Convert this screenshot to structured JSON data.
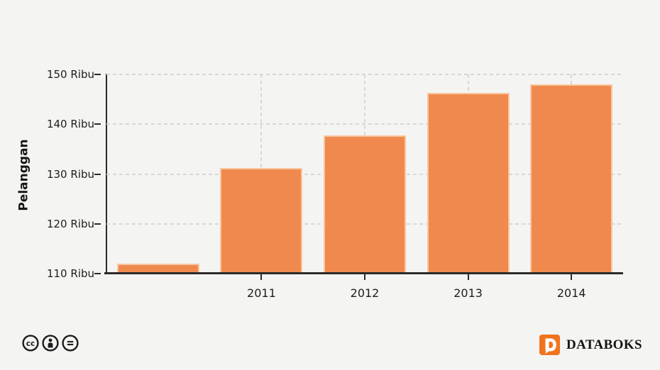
{
  "chart_data": {
    "type": "bar",
    "categories": [
      "",
      "2011",
      "2012",
      "2013",
      "2014"
    ],
    "values": [
      112,
      131.2,
      137.8,
      146.3,
      148
    ],
    "title": "",
    "xlabel": "",
    "ylabel": "Pelanggan",
    "unit": "Ribu",
    "ylim": [
      110,
      150
    ],
    "yticks": [
      110,
      120,
      130,
      140,
      150
    ],
    "ytick_labels": [
      "110 Ribu",
      "120 Ribu",
      "130 Ribu",
      "140 Ribu",
      "150 Ribu"
    ],
    "grid": "dashed horizontal and vertical gridlines",
    "legend": false,
    "bar_color": "#F0894E",
    "bar_border_color": "#F8C79F"
  },
  "colors": {
    "background": "#F4F4F3",
    "axis": "#2B2B2B",
    "gridline": "#D7D7D5",
    "text": "#1E1E1E",
    "brand_orange": "#F0741E"
  },
  "footer": {
    "license_icons": [
      "cc-icon",
      "attribution-icon",
      "no-derivatives-icon"
    ],
    "brand": "DATABOKS"
  }
}
